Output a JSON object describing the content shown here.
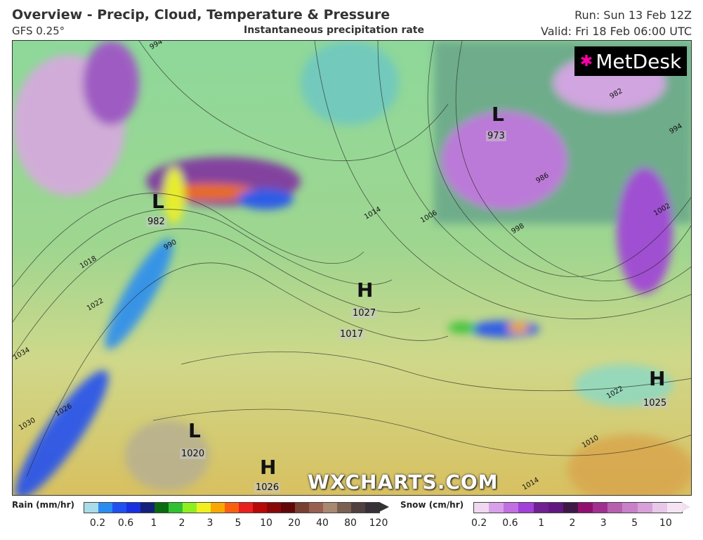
{
  "header": {
    "title": "Overview - Precip, Cloud, Temperature & Pressure",
    "model": "GFS 0.25°",
    "subtitle": "Instantaneous precipitation rate",
    "run": "Run: Sun 13 Feb 12Z",
    "valid": "Valid: Fri 18 Feb 06:00 UTC"
  },
  "map": {
    "logo": "MetDesk",
    "watermark": "WXCHARTS.COM",
    "pressure_centres": [
      {
        "type": "L",
        "value": "982"
      },
      {
        "type": "L",
        "value": "973"
      },
      {
        "type": "H",
        "value": "1027"
      },
      {
        "type": "H",
        "value": "1025"
      },
      {
        "type": "L",
        "value": "1020"
      },
      {
        "type": "H",
        "value": "1026"
      }
    ],
    "extra_label": "1017",
    "isobar_labels": [
      "994",
      "982",
      "986",
      "990",
      "994",
      "998",
      "1002",
      "1006",
      "1014",
      "1018",
      "1022",
      "1026",
      "1030",
      "1034",
      "1022",
      "1014",
      "1010"
    ]
  },
  "legend": {
    "rain": {
      "label": "Rain (mm/hr)",
      "ticks": [
        "0.2",
        "0.6",
        "1",
        "2",
        "3",
        "5",
        "10",
        "20",
        "40",
        "80",
        "120"
      ],
      "colors": [
        "#a8dce8",
        "#2a8cf0",
        "#2050f0",
        "#1830e0",
        "#14207a",
        "#0a6a10",
        "#30c030",
        "#90ee20",
        "#f0f020",
        "#f8a800",
        "#f86010",
        "#e82020",
        "#b80808",
        "#880808",
        "#600808",
        "#784030",
        "#986050",
        "#a88870",
        "#7a6050",
        "#504040",
        "#383038"
      ]
    },
    "snow": {
      "label": "Snow (cm/hr)",
      "ticks": [
        "0.2",
        "0.6",
        "1",
        "2",
        "3",
        "5",
        "10"
      ],
      "colors": [
        "#f0d8f0",
        "#d8a0e8",
        "#c070e0",
        "#a040d8",
        "#702090",
        "#601880",
        "#401848",
        "#901070",
        "#a03090",
        "#b860b0",
        "#c880c8",
        "#d8a0d8",
        "#e8c8e8",
        "#f4e4f4"
      ]
    }
  }
}
